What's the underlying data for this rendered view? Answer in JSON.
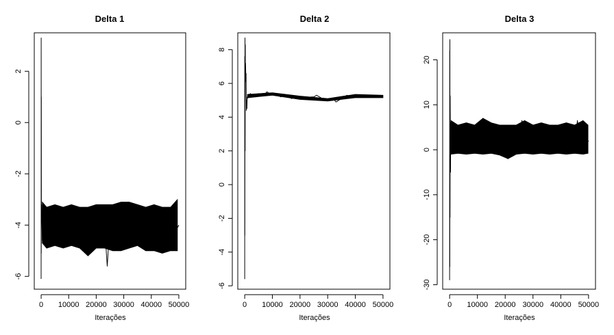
{
  "chart_data": [
    {
      "type": "line",
      "title": "Delta 1",
      "xlabel": "Iterações",
      "ylabel": "",
      "xlim": [
        -2500,
        52500
      ],
      "ylim": [
        -6.5,
        3.5
      ],
      "xticks": [
        0,
        10000,
        20000,
        30000,
        40000,
        50000
      ],
      "xtick_labels": [
        "0",
        "10000",
        "20000",
        "30000",
        "40000",
        "50000"
      ],
      "yticks": [
        -6,
        -4,
        -2,
        0,
        2
      ],
      "ytick_labels": [
        "-6",
        "-4",
        "-2",
        "0",
        "2"
      ],
      "grid": false,
      "legend": "none",
      "color": "#000000",
      "series": [
        {
          "x": [
            0,
            20,
            40,
            60,
            100,
            200,
            400,
            600,
            800,
            1000,
            2000,
            3000,
            4000,
            5000,
            6000,
            7000,
            8000,
            9000,
            10000,
            11000,
            12000,
            13000,
            14000,
            15000,
            16000,
            17000,
            18000,
            19000,
            20000,
            21000,
            22000,
            23000,
            24000,
            25000,
            26000,
            27000,
            28000,
            29000,
            30000,
            31000,
            32000,
            33000,
            34000,
            35000,
            36000,
            37000,
            38000,
            39000,
            40000,
            41000,
            42000,
            43000,
            44000,
            45000,
            46000,
            47000,
            48000,
            49000,
            50000
          ],
          "y": [
            -6.1,
            3.3,
            -5.1,
            1.0,
            -3.9,
            -3.2,
            -4.6,
            -3.4,
            -4.7,
            -3.9,
            -4.0,
            -3.8,
            -4.1,
            -3.9,
            -4.0,
            -3.8,
            -4.1,
            -4.0,
            -3.9,
            -4.2,
            -3.8,
            -4.0,
            -4.1,
            -3.9,
            -4.0,
            -3.7,
            -4.2,
            -4.0,
            -3.9,
            -4.1,
            -3.8,
            -4.0,
            -5.6,
            -3.9,
            -4.0,
            -4.1,
            -3.8,
            -4.0,
            -3.9,
            -4.1,
            -4.0,
            -3.8,
            -4.0,
            -4.1,
            -3.9,
            -4.0,
            -3.8,
            -4.1,
            -4.0,
            -3.9,
            -4.1,
            -3.8,
            -4.0,
            -4.1,
            -3.9,
            -4.0,
            -3.7,
            -4.2,
            -4.0
          ],
          "band": {
            "x": [
              400,
              2000,
              5000,
              8000,
              11000,
              14000,
              17000,
              20000,
              23000,
              26000,
              29000,
              32000,
              35000,
              38000,
              41000,
              44000,
              47000,
              49500
            ],
            "upper": [
              -3.1,
              -3.3,
              -3.2,
              -3.3,
              -3.2,
              -3.3,
              -3.3,
              -3.2,
              -3.2,
              -3.2,
              -3.1,
              -3.1,
              -3.2,
              -3.3,
              -3.2,
              -3.3,
              -3.3,
              -3.0
            ],
            "lower": [
              -4.7,
              -4.9,
              -4.8,
              -4.9,
              -4.8,
              -4.9,
              -5.2,
              -4.9,
              -4.9,
              -5.0,
              -5.0,
              -4.9,
              -4.8,
              -5.0,
              -5.0,
              -5.1,
              -5.0,
              -5.0
            ]
          }
        }
      ]
    },
    {
      "type": "line",
      "title": "Delta 2",
      "xlabel": "Iterações",
      "ylabel": "",
      "xlim": [
        -2500,
        52500
      ],
      "ylim": [
        -6.2,
        9.0
      ],
      "xticks": [
        0,
        10000,
        20000,
        30000,
        40000,
        50000
      ],
      "xtick_labels": [
        "0",
        "10000",
        "20000",
        "30000",
        "40000",
        "50000"
      ],
      "yticks": [
        -6,
        -4,
        -2,
        0,
        2,
        4,
        6,
        8
      ],
      "ytick_labels": [
        "-6",
        "-4",
        "-2",
        "0",
        "2",
        "4",
        "6",
        "8"
      ],
      "grid": false,
      "legend": "none",
      "color": "#000000",
      "series": [
        {
          "x": [
            0,
            30,
            60,
            100,
            150,
            200,
            250,
            300,
            350,
            400,
            500,
            600,
            700,
            800,
            900,
            1000,
            1200,
            1500,
            2000,
            2500,
            3000,
            4000,
            5000,
            6000,
            7000,
            8000,
            9000,
            10000,
            11000,
            12000,
            13000,
            14000,
            15000,
            16000,
            17000,
            18000,
            19000,
            20000,
            21000,
            22000,
            23000,
            24000,
            25000,
            26000,
            27000,
            28000,
            29000,
            30000,
            31000,
            32000,
            33000,
            34000,
            35000,
            36000,
            37000,
            38000,
            39000,
            40000,
            41000,
            42000,
            43000,
            44000,
            45000,
            46000,
            47000,
            48000,
            49000,
            50000
          ],
          "y": [
            -5.6,
            7.6,
            -3.0,
            8.7,
            2.0,
            8.3,
            6.1,
            7.2,
            6.9,
            6.3,
            6.6,
            4.4,
            5.0,
            4.5,
            5.2,
            5.1,
            5.3,
            5.2,
            5.4,
            5.3,
            5.3,
            5.2,
            5.4,
            5.3,
            5.3,
            5.5,
            5.4,
            5.4,
            5.3,
            5.3,
            5.2,
            5.3,
            5.2,
            5.2,
            5.1,
            5.2,
            5.2,
            5.1,
            5.2,
            5.1,
            5.1,
            5.2,
            5.2,
            5.3,
            5.2,
            5.1,
            5.1,
            5.0,
            5.0,
            5.1,
            4.9,
            5.0,
            5.1,
            5.2,
            5.3,
            5.2,
            5.2,
            5.3,
            5.3,
            5.2,
            5.3,
            5.3,
            5.2,
            5.3,
            5.2,
            5.3,
            5.2,
            5.2
          ],
          "band": {
            "x": [
              1000,
              10000,
              20000,
              30000,
              40000,
              50000
            ],
            "upper": [
              5.35,
              5.45,
              5.25,
              5.1,
              5.35,
              5.3
            ],
            "lower": [
              5.15,
              5.3,
              5.05,
              4.95,
              5.15,
              5.15
            ]
          }
        }
      ]
    },
    {
      "type": "line",
      "title": "Delta 3",
      "xlabel": "Iterações",
      "ylabel": "",
      "xlim": [
        -2500,
        52500
      ],
      "ylim": [
        -31,
        26
      ],
      "xticks": [
        0,
        10000,
        20000,
        30000,
        40000,
        50000
      ],
      "xtick_labels": [
        "0",
        "10000",
        "20000",
        "30000",
        "40000",
        "50000"
      ],
      "yticks": [
        -30,
        -20,
        -10,
        0,
        10,
        20
      ],
      "ytick_labels": [
        "-30",
        "-20",
        "-10",
        "0",
        "10",
        "20"
      ],
      "grid": false,
      "legend": "none",
      "color": "#000000",
      "series": [
        {
          "x": [
            0,
            30,
            60,
            100,
            150,
            200,
            300,
            400,
            600,
            800,
            1000,
            2000,
            3000,
            4000,
            5000,
            6000,
            7000,
            8000,
            9000,
            10000,
            11000,
            12000,
            13000,
            14000,
            15000,
            16000,
            17000,
            18000,
            19000,
            20000,
            21000,
            22000,
            23000,
            24000,
            25000,
            26000,
            27000,
            28000,
            29000,
            30000,
            31000,
            32000,
            33000,
            34000,
            35000,
            36000,
            37000,
            38000,
            39000,
            40000,
            41000,
            42000,
            43000,
            44000,
            45000,
            46000,
            47000,
            48000,
            49000,
            50000
          ],
          "y": [
            -29.0,
            22.0,
            -26.0,
            24.5,
            -15.0,
            12.0,
            -5.0,
            6.0,
            -1.0,
            5.0,
            2.0,
            3.0,
            1.0,
            4.0,
            2.0,
            3.0,
            1.0,
            4.0,
            2.0,
            3.0,
            2.0,
            7.0,
            1.0,
            3.0,
            2.0,
            4.0,
            1.0,
            3.0,
            2.0,
            3.0,
            -2.0,
            4.0,
            2.0,
            3.0,
            1.0,
            6.5,
            2.0,
            3.0,
            1.0,
            4.0,
            2.0,
            3.0,
            1.0,
            4.0,
            2.0,
            3.0,
            1.0,
            4.0,
            2.0,
            3.0,
            1.0,
            4.0,
            2.0,
            3.0,
            1.0,
            6.5,
            2.0,
            3.0,
            1.0,
            2.0
          ],
          "band": {
            "x": [
              500,
              3000,
              6000,
              9000,
              12000,
              15000,
              18000,
              21000,
              24000,
              27000,
              30000,
              33000,
              36000,
              39000,
              42000,
              45000,
              48000,
              49800
            ],
            "upper": [
              6.5,
              5.5,
              6.0,
              5.5,
              7.0,
              6.0,
              5.5,
              5.5,
              5.5,
              6.5,
              5.5,
              6.0,
              5.5,
              5.5,
              6.0,
              5.5,
              6.5,
              5.5
            ],
            "lower": [
              -1.0,
              -0.8,
              -1.0,
              -0.8,
              -1.0,
              -0.8,
              -1.2,
              -2.0,
              -1.0,
              -0.8,
              -1.0,
              -0.8,
              -1.0,
              -0.8,
              -1.0,
              -0.8,
              -1.0,
              -0.8
            ]
          }
        }
      ]
    }
  ]
}
